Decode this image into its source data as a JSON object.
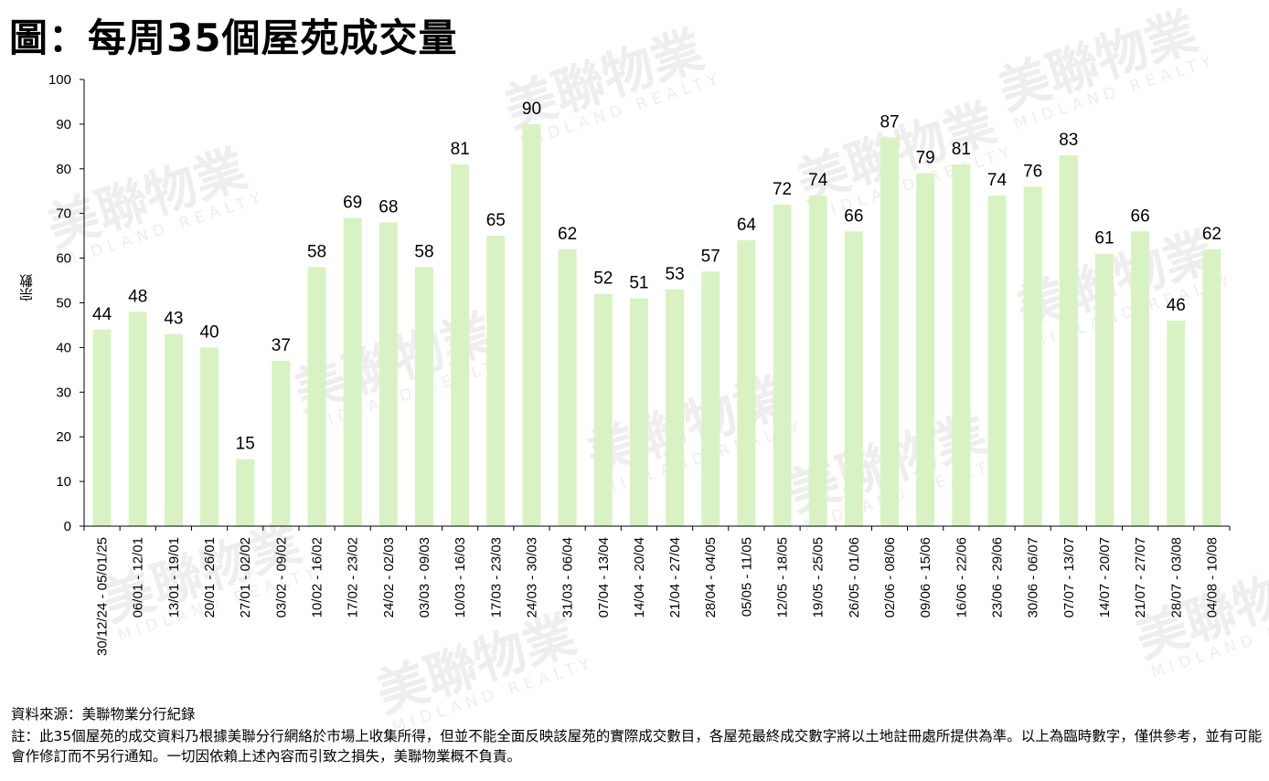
{
  "title": "圖：每周35個屋苑成交量",
  "colors": {
    "bar": "#d9f2c4",
    "axis": "#000000",
    "watermark": "#eeeeee"
  },
  "chart_data": {
    "type": "bar",
    "ylabel": "宗數",
    "ylim": [
      0,
      100
    ],
    "yticks": [
      0,
      10,
      20,
      30,
      40,
      50,
      60,
      70,
      80,
      90,
      100
    ],
    "grid": false,
    "categories": [
      "30/12/24 - 05/01/25",
      "06/01 - 12/01",
      "13/01 - 19/01",
      "20/01 - 26/01",
      "27/01 - 02/02",
      "03/02 - 09/02",
      "10/02 - 16/02",
      "17/02 - 23/02",
      "24/02 - 02/03",
      "03/03 - 09/03",
      "10/03 - 16/03",
      "17/03 - 23/03",
      "24/03 - 30/03",
      "31/03 - 06/04",
      "07/04 - 13/04",
      "14/04 - 20/04",
      "21/04 - 27/04",
      "28/04 - 04/05",
      "05/05 - 11/05",
      "12/05 - 18/05",
      "19/05 - 25/05",
      "26/05 - 01/06",
      "02/06 - 08/06",
      "09/06 - 15/06",
      "16/06 - 22/06",
      "23/06 - 29/06",
      "30/06 - 06/07",
      "07/07 - 13/07",
      "14/07 - 20/07",
      "21/07 - 27/07",
      "28/07 - 03/08",
      "04/08 - 10/08"
    ],
    "values": [
      44,
      48,
      43,
      40,
      15,
      37,
      58,
      69,
      68,
      58,
      81,
      65,
      90,
      62,
      52,
      51,
      53,
      57,
      64,
      72,
      74,
      66,
      87,
      79,
      81,
      74,
      76,
      83,
      61,
      66,
      46,
      62
    ]
  },
  "footer": {
    "source": "資料來源：美聯物業分行紀錄",
    "note": "註：此35個屋苑的成交資料乃根據美聯分行網絡於市場上收集所得，但並不能全面反映該屋苑的實際成交數目，各屋苑最終成交數字將以土地註冊處所提供為準。以上為臨時數字，僅供參考，並有可能會作修訂而不另行通知。一切因依賴上述內容而引致之損失，美聯物業概不負責。"
  },
  "watermark": {
    "text": "美聯物業",
    "subtext": "MIDLAND REALTY"
  }
}
